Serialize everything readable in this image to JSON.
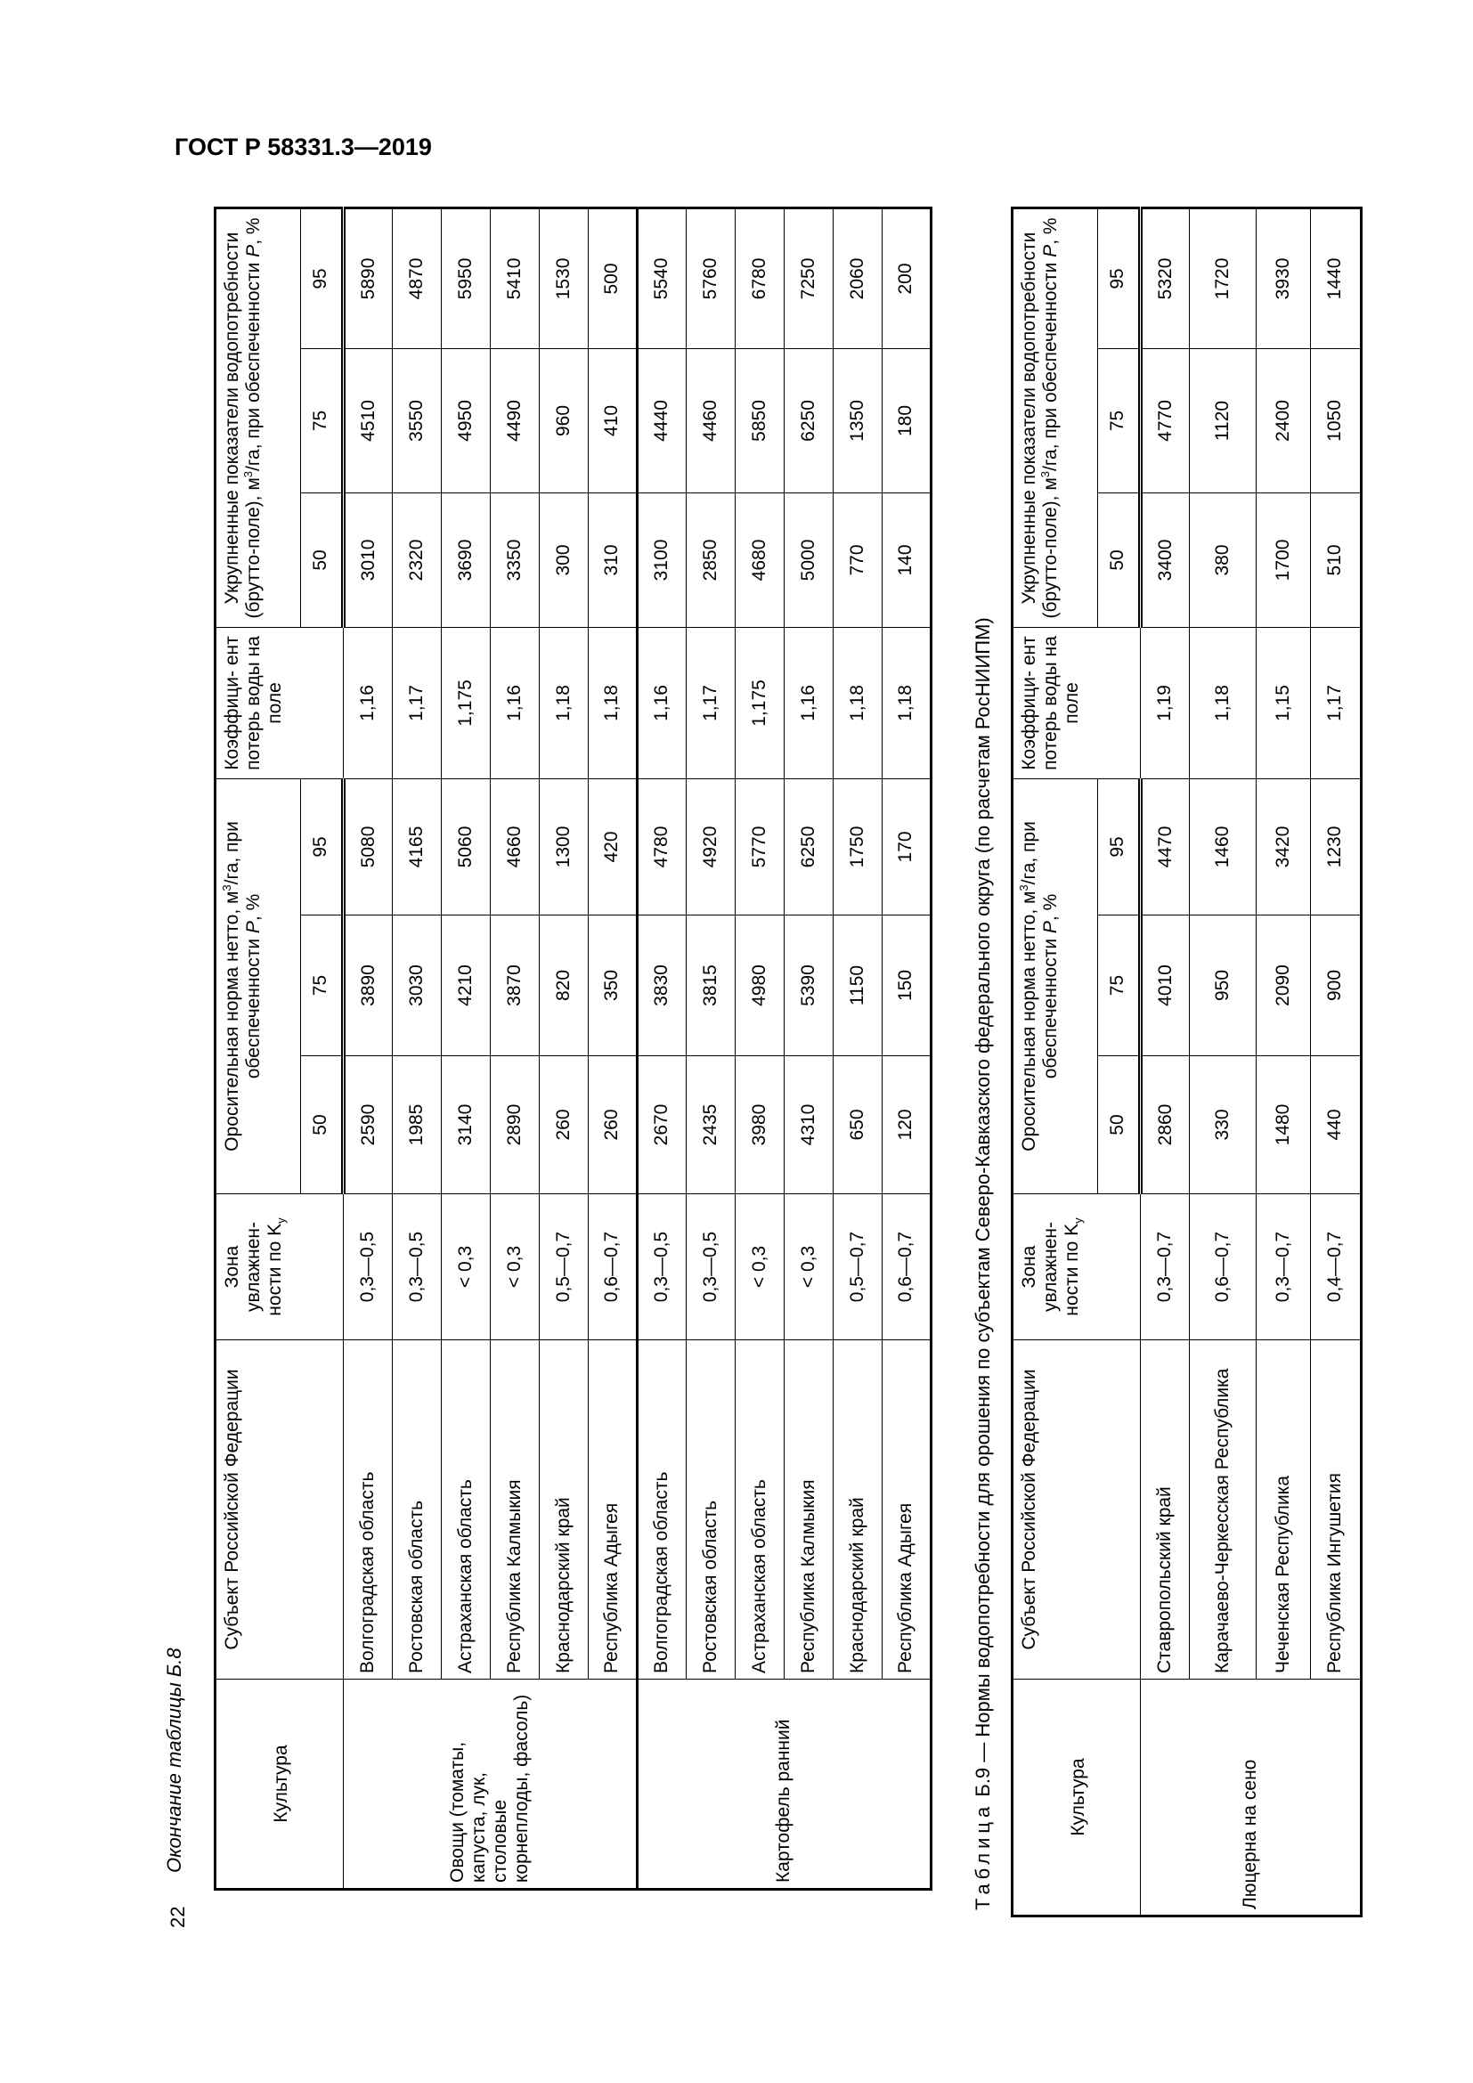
{
  "header": {
    "doc_code": "ГОСТ Р 58331.3—2019"
  },
  "page_number": "22",
  "columns": {
    "culture": "Культура",
    "subject": "Субъект Российской Федерации",
    "zone": "Зона увлажнен- ности по K",
    "zone_sub": "у",
    "net_a": "Оросительная норма нетто, м",
    "net_b": "/га, при обеспеченности ",
    "coef": "Коэффици- ент потерь воды на поле",
    "gross_a": "Укрупненные показатели водопотребности (брутто-поле), м",
    "gross_b": "/га, при обеспеченности ",
    "sup3": "3",
    "P": "P",
    "pct": ", %",
    "p50": "50",
    "p75": "75",
    "p95": "95"
  },
  "table_b8": {
    "continuation_label": "Окончание таблицы Б.8",
    "groups": [
      {
        "culture": "Овощи (томаты, капуста, лук, столовые корнеплоды, фасоль)",
        "rows": [
          [
            "Волгоградская область",
            "0,3—0,5",
            "2590",
            "3890",
            "5080",
            "1,16",
            "3010",
            "4510",
            "5890"
          ],
          [
            "Ростовская область",
            "0,3—0,5",
            "1985",
            "3030",
            "4165",
            "1,17",
            "2320",
            "3550",
            "4870"
          ],
          [
            "Астраханская область",
            "< 0,3",
            "3140",
            "4210",
            "5060",
            "1,175",
            "3690",
            "4950",
            "5950"
          ],
          [
            "Республика Калмыкия",
            "< 0,3",
            "2890",
            "3870",
            "4660",
            "1,16",
            "3350",
            "4490",
            "5410"
          ],
          [
            "Краснодарский край",
            "0,5—0,7",
            "260",
            "820",
            "1300",
            "1,18",
            "300",
            "960",
            "1530"
          ],
          [
            "Республика Адыгея",
            "0,6—0,7",
            "260",
            "350",
            "420",
            "1,18",
            "310",
            "410",
            "500"
          ]
        ]
      },
      {
        "culture": "Картофель ранний",
        "rows": [
          [
            "Волгоградская область",
            "0,3—0,5",
            "2670",
            "3830",
            "4780",
            "1,16",
            "3100",
            "4440",
            "5540"
          ],
          [
            "Ростовская область",
            "0,3—0,5",
            "2435",
            "3815",
            "4920",
            "1,17",
            "2850",
            "4460",
            "5760"
          ],
          [
            "Астраханская область",
            "< 0,3",
            "3980",
            "4980",
            "5770",
            "1,175",
            "4680",
            "5850",
            "6780"
          ],
          [
            "Республика Калмыкия",
            "< 0,3",
            "4310",
            "5390",
            "6250",
            "1,16",
            "5000",
            "6250",
            "7250"
          ],
          [
            "Краснодарский край",
            "0,5—0,7",
            "650",
            "1150",
            "1750",
            "1,18",
            "770",
            "1350",
            "2060"
          ],
          [
            "Республика Адыгея",
            "0,6—0,7",
            "120",
            "150",
            "170",
            "1,18",
            "140",
            "180",
            "200"
          ]
        ]
      }
    ]
  },
  "table_b9": {
    "caption_prefix": "Таблица",
    "caption_text": " Б.9 — Нормы водопотребности для орошения по субъектам Северо-Кавказского федерального округа (по расчетам РосНИИПМ)",
    "groups": [
      {
        "culture": "Люцерна на сено",
        "rows": [
          [
            "Ставропольский край",
            "0,3—0,7",
            "2860",
            "4010",
            "4470",
            "1,19",
            "3400",
            "4770",
            "5320"
          ],
          [
            "Карачаево-Черкесская Республика",
            "0,6—0,7",
            "330",
            "950",
            "1460",
            "1,18",
            "380",
            "1120",
            "1720"
          ],
          [
            "Чеченская Республика",
            "0,3—0,7",
            "1480",
            "2090",
            "3420",
            "1,15",
            "1700",
            "2400",
            "3930"
          ],
          [
            "Республика Ингушетия",
            "0,4—0,7",
            "440",
            "900",
            "1230",
            "1,17",
            "510",
            "1050",
            "1440"
          ]
        ]
      }
    ]
  }
}
